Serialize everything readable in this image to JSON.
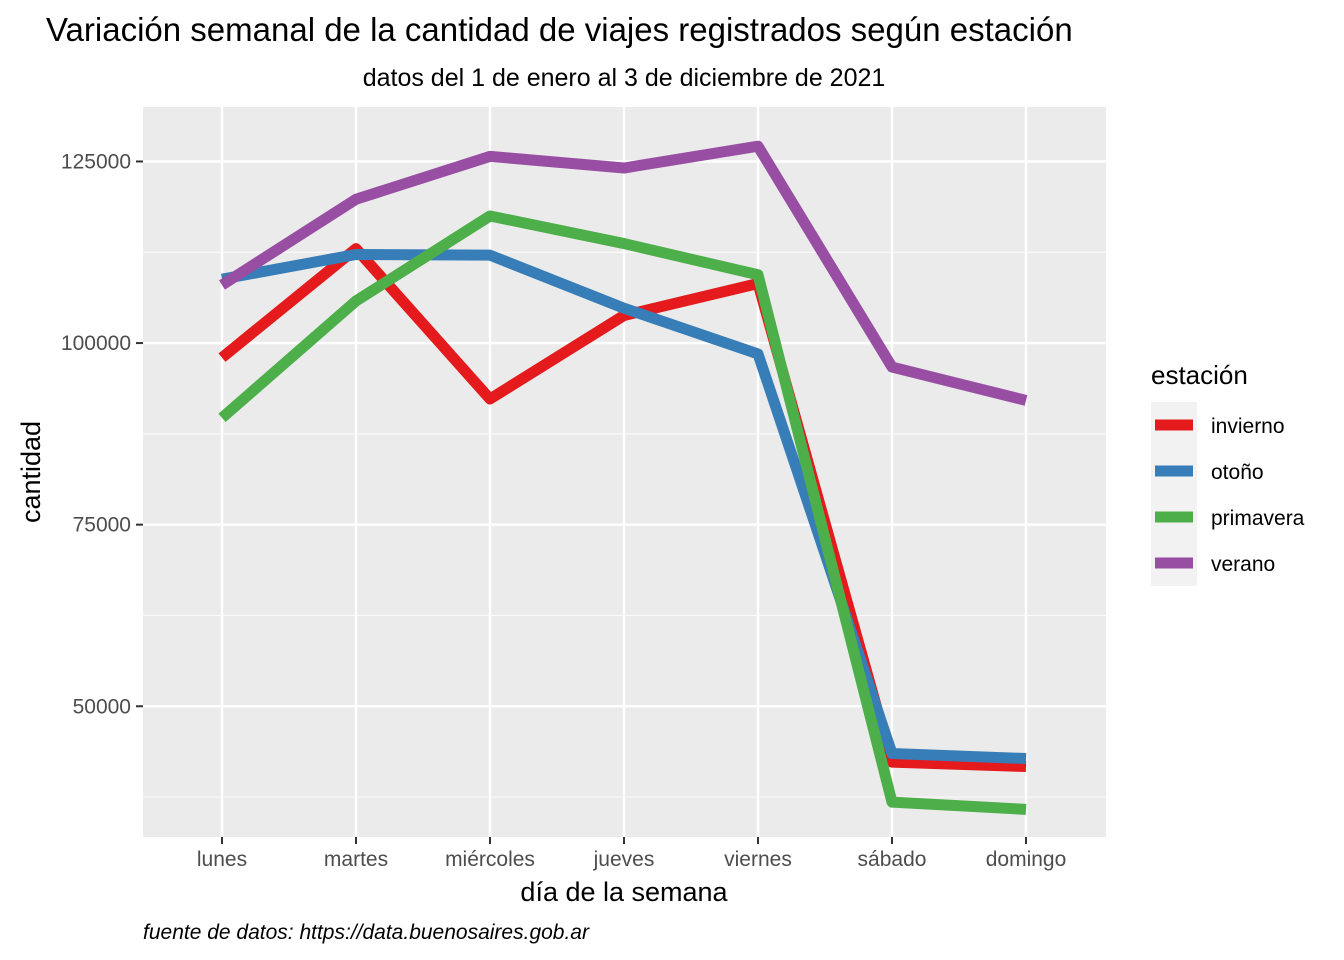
{
  "chart_data": {
    "type": "line",
    "title": "Variación semanal de la cantidad de viajes registrados según estación",
    "subtitle": "datos del 1 de enero al 3 de diciembre de 2021",
    "xlabel": "día de la semana",
    "ylabel": "cantidad",
    "caption": "fuente de datos: https://data.buenosaires.gob.ar",
    "categories": [
      "lunes",
      "martes",
      "miércoles",
      "jueves",
      "viernes",
      "sábado",
      "domingo"
    ],
    "yticks": [
      50000,
      75000,
      100000,
      125000
    ],
    "ylim": [
      32000,
      132500
    ],
    "grid": true,
    "legend": {
      "title": "estación",
      "position": "right"
    },
    "series": [
      {
        "name": "invierno",
        "color": "#E41A1C",
        "values": [
          98000,
          113000,
          92300,
          103800,
          108200,
          42300,
          41700
        ]
      },
      {
        "name": "otoño",
        "color": "#377EB8",
        "values": [
          108800,
          112200,
          112100,
          104800,
          98500,
          43500,
          42800
        ]
      },
      {
        "name": "primavera",
        "color": "#4DAF4A",
        "values": [
          89700,
          105800,
          117500,
          113700,
          109400,
          36800,
          35800
        ]
      },
      {
        "name": "verano",
        "color": "#984EA3",
        "values": [
          108000,
          119800,
          125700,
          124100,
          127100,
          96700,
          92100
        ]
      }
    ]
  }
}
